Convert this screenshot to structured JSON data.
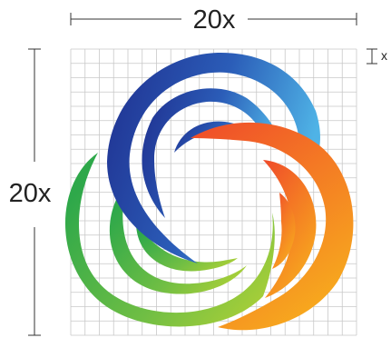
{
  "labels": {
    "top_dimension": "20x",
    "left_dimension": "20x",
    "unit_marker": "x"
  },
  "grid": {
    "divisions": 20,
    "line_color": "#c8c8c8"
  },
  "colors": {
    "dimension_line": "#333333",
    "blue_start": "#1f2f8f",
    "blue_end": "#4fb3e6",
    "orange_start": "#ef4a2a",
    "orange_end": "#f7a81e",
    "green_start": "#2ea84a",
    "green_end": "#b7d335"
  },
  "logo": {
    "description_icon": "spiral-rings-logo-icon"
  }
}
